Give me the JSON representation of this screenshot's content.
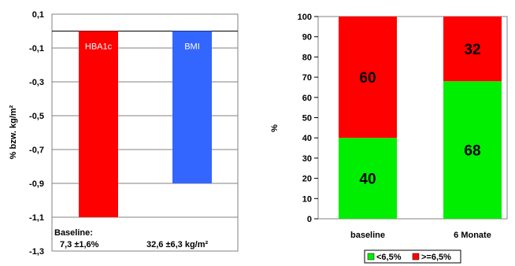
{
  "chart_data": [
    {
      "type": "bar",
      "categories": [
        "HBA1c",
        "BMI"
      ],
      "values": [
        -1.1,
        -0.9
      ],
      "colors": [
        "#ff0000",
        "#3366ff"
      ],
      "ylabel": "% bzw. kg/m²",
      "ylim": [
        -1.3,
        0.1
      ],
      "yticks": [
        "0,1",
        "-0,1",
        "-0,3",
        "-0,5",
        "-0,7",
        "-0,9",
        "-1,1",
        "-1,3"
      ],
      "grid": true,
      "baseline_label": "Baseline:",
      "baseline_values": [
        "7,3 ±1,6%",
        "32,6  ±6,3 kg/m²"
      ]
    },
    {
      "type": "bar",
      "stacked": true,
      "categories": [
        "baseline",
        "6 Monate"
      ],
      "ylabel": "%",
      "ylim": [
        0,
        100
      ],
      "yticks": [
        "0",
        "10",
        "20",
        "30",
        "40",
        "50",
        "60",
        "70",
        "80",
        "90",
        "100"
      ],
      "series": [
        {
          "name": "<6,5%",
          "color": "#00ee00",
          "values": [
            40,
            68
          ]
        },
        {
          "name": ">=6,5%",
          "color": "#ff0000",
          "values": [
            60,
            32
          ]
        }
      ],
      "legend": "bottom"
    }
  ]
}
